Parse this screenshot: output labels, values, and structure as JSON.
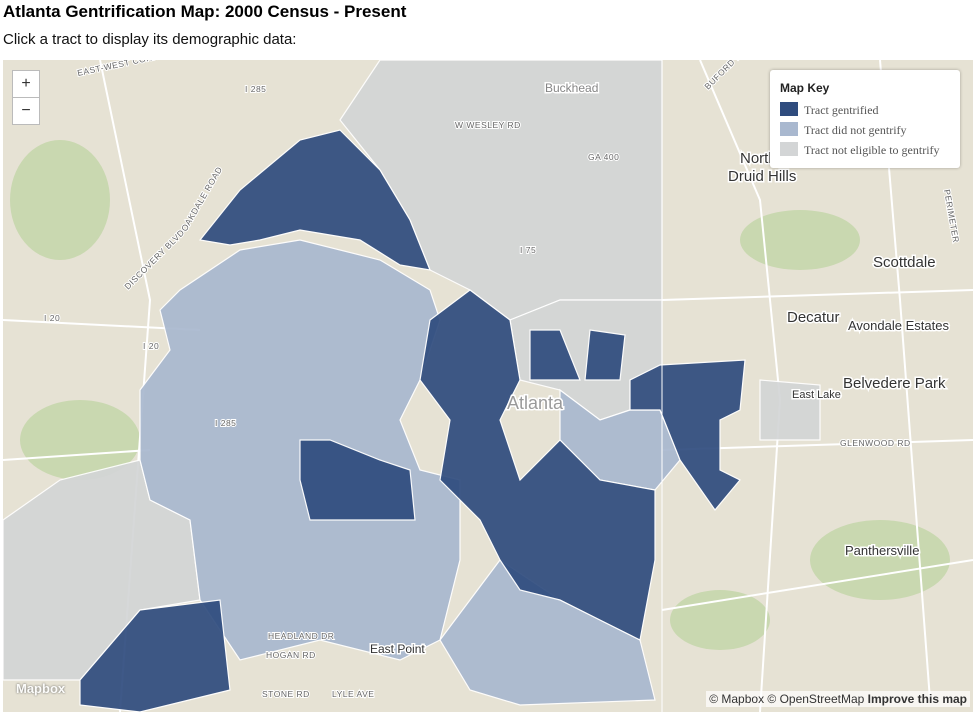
{
  "header": {
    "title": "Atlanta Gentrification Map: 2000 Census - Present",
    "subtitle": "Click a tract to display its demographic data:"
  },
  "map": {
    "zoom_in": "+",
    "zoom_out": "−",
    "legend": {
      "title": "Map Key",
      "items": [
        {
          "label": "Tract gentrified",
          "color": "#2f4c7e"
        },
        {
          "label": "Tract did not gentrify",
          "color": "#a9b8cf"
        },
        {
          "label": "Tract not eligible to gentrify",
          "color": "#d3d5d6"
        }
      ]
    },
    "place_labels": [
      "Buckhead",
      "North",
      "Druid Hills",
      "Scottdale",
      "Decatur",
      "Avondale Estates",
      "Belvedere Park",
      "Atlanta",
      "East Lake",
      "Panthersville",
      "East Point"
    ],
    "road_labels": [
      "EAST-WEST CONNECTOR",
      "I 285",
      "W WESLEY RD",
      "GA 400",
      "I 75",
      "DISCOVERY BLVD",
      "OAKDALE ROAD",
      "I 20",
      "I 20",
      "I 285",
      "HEADLAND DR",
      "HOGAN RD",
      "STONE RD",
      "LYLE AVE",
      "GLENWOOD RD",
      "PERIMETER",
      "BUFORD HWY"
    ],
    "attribution": {
      "logo": "Mapbox",
      "credits": "© Mapbox © OpenStreetMap",
      "link": "Improve this map"
    }
  }
}
